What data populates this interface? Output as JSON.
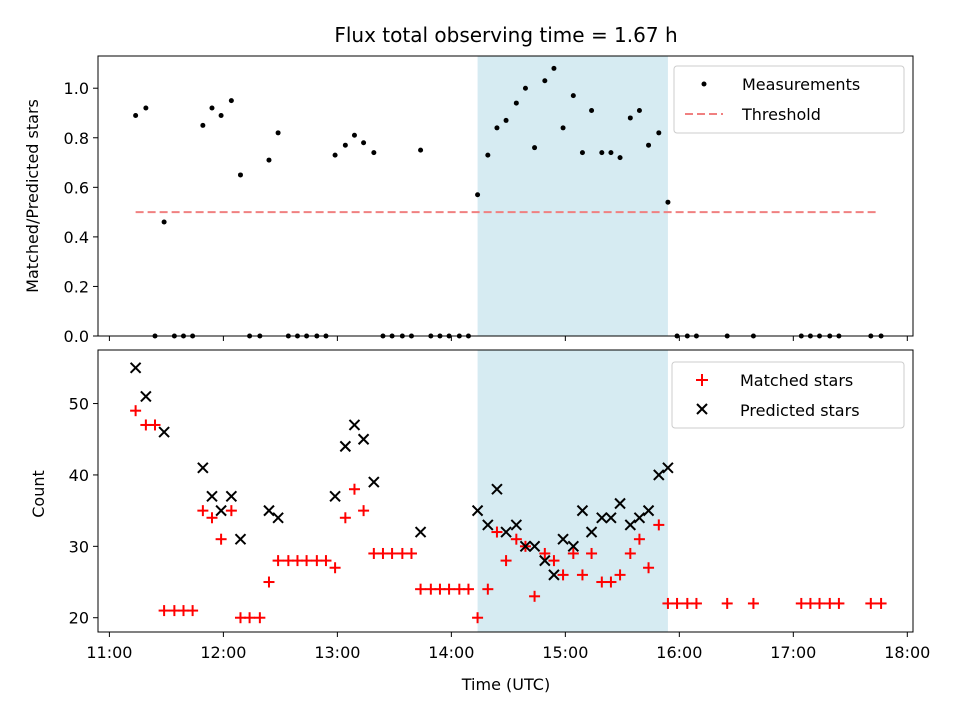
{
  "chart_data": [
    {
      "type": "scatter",
      "title": "Flux total observing time = 1.67 h",
      "ylabel": "Matched/Predicted stars",
      "xlim": [
        10.9,
        18.05
      ],
      "ylim": [
        0,
        1.13
      ],
      "x_ticks": [
        11,
        12,
        13,
        14,
        15,
        16,
        17,
        18
      ],
      "y_ticks": [
        0.0,
        0.2,
        0.4,
        0.6,
        0.8,
        1.0
      ],
      "y_tick_labels": [
        "0.0",
        "0.2",
        "0.4",
        "0.6",
        "0.8",
        "1.0"
      ],
      "legend_position": "upper right",
      "shaded_span": {
        "start": 14.23,
        "end": 15.9,
        "color": "#add8e6"
      },
      "series": [
        {
          "name": "Measurements",
          "marker": "dot",
          "color": "#000000",
          "x": [
            11.23,
            11.32,
            11.4,
            11.48,
            11.57,
            11.65,
            11.73,
            11.82,
            11.9,
            11.98,
            12.07,
            12.15,
            12.23,
            12.32,
            12.4,
            12.48,
            12.57,
            12.65,
            12.73,
            12.82,
            12.9,
            12.98,
            13.07,
            13.15,
            13.23,
            13.32,
            13.4,
            13.48,
            13.57,
            13.65,
            13.73,
            13.82,
            13.9,
            13.98,
            14.07,
            14.15,
            14.23,
            14.32,
            14.4,
            14.48,
            14.57,
            14.65,
            14.73,
            14.82,
            14.9,
            14.98,
            15.07,
            15.15,
            15.23,
            15.32,
            15.4,
            15.48,
            15.57,
            15.65,
            15.73,
            15.82,
            15.9,
            15.98,
            16.07,
            16.15,
            16.42,
            16.65,
            17.07,
            17.15,
            17.23,
            17.32,
            17.4,
            17.68,
            17.77
          ],
          "y": [
            0.89,
            0.92,
            0.0,
            0.46,
            0.0,
            0.0,
            0.0,
            0.85,
            0.92,
            0.89,
            0.95,
            0.65,
            0.0,
            0.0,
            0.71,
            0.82,
            0.0,
            0.0,
            0.0,
            0.0,
            0.0,
            0.73,
            0.77,
            0.81,
            0.78,
            0.74,
            0.0,
            0.0,
            0.0,
            0.0,
            0.75,
            0.0,
            0.0,
            0.0,
            0.0,
            0.0,
            0.57,
            0.73,
            0.84,
            0.87,
            0.94,
            1.0,
            0.76,
            1.03,
            1.08,
            0.84,
            0.97,
            0.74,
            0.91,
            0.74,
            0.74,
            0.72,
            0.88,
            0.91,
            0.77,
            0.82,
            0.54,
            0.0,
            0.0,
            0.0,
            0.0,
            0.0,
            0.0,
            0.0,
            0.0,
            0.0,
            0.0,
            0.0,
            0.0
          ]
        },
        {
          "name": "Threshold",
          "marker": "dashed-line",
          "color": "#f08080",
          "x": [
            11.23,
            17.73
          ],
          "y": [
            0.5,
            0.5
          ]
        }
      ]
    },
    {
      "type": "scatter",
      "xlabel": "Time (UTC)",
      "ylabel": "Count",
      "xlim": [
        10.9,
        18.05
      ],
      "ylim": [
        18,
        57.5
      ],
      "x_ticks": [
        11,
        12,
        13,
        14,
        15,
        16,
        17,
        18
      ],
      "x_tick_labels": [
        "11:00",
        "12:00",
        "13:00",
        "14:00",
        "15:00",
        "16:00",
        "17:00",
        "18:00"
      ],
      "y_ticks": [
        20,
        30,
        40,
        50
      ],
      "y_tick_labels": [
        "20",
        "30",
        "40",
        "50"
      ],
      "legend_position": "upper right",
      "shaded_span": {
        "start": 14.23,
        "end": 15.9,
        "color": "#add8e6"
      },
      "series": [
        {
          "name": "Matched stars",
          "marker": "plus",
          "color": "#ff0000",
          "x": [
            11.23,
            11.32,
            11.4,
            11.48,
            11.57,
            11.65,
            11.73,
            11.82,
            11.9,
            11.98,
            12.07,
            12.15,
            12.23,
            12.32,
            12.4,
            12.48,
            12.57,
            12.65,
            12.73,
            12.82,
            12.9,
            12.98,
            13.07,
            13.15,
            13.23,
            13.32,
            13.4,
            13.48,
            13.57,
            13.65,
            13.73,
            13.82,
            13.9,
            13.98,
            14.07,
            14.15,
            14.23,
            14.32,
            14.4,
            14.48,
            14.57,
            14.65,
            14.73,
            14.82,
            14.9,
            14.98,
            15.07,
            15.15,
            15.23,
            15.32,
            15.4,
            15.48,
            15.57,
            15.65,
            15.73,
            15.82,
            15.9,
            15.98,
            16.07,
            16.15,
            16.42,
            16.65,
            17.07,
            17.15,
            17.23,
            17.32,
            17.4,
            17.68,
            17.77
          ],
          "y": [
            49,
            47,
            47,
            21,
            21,
            21,
            21,
            35,
            34,
            31,
            35,
            20,
            20,
            20,
            25,
            28,
            28,
            28,
            28,
            28,
            28,
            27,
            34,
            38,
            35,
            29,
            29,
            29,
            29,
            29,
            24,
            24,
            24,
            24,
            24,
            24,
            20,
            24,
            32,
            28,
            31,
            30,
            23,
            29,
            28,
            26,
            29,
            26,
            29,
            25,
            25,
            26,
            29,
            31,
            27,
            33,
            22,
            22,
            22,
            22,
            22,
            22,
            22,
            22,
            22,
            22,
            22,
            22,
            22
          ]
        },
        {
          "name": "Predicted stars",
          "marker": "x",
          "color": "#000000",
          "x": [
            11.23,
            11.32,
            11.48,
            11.82,
            11.9,
            11.98,
            12.07,
            12.15,
            12.4,
            12.48,
            12.98,
            13.07,
            13.15,
            13.23,
            13.32,
            13.73,
            14.23,
            14.32,
            14.4,
            14.48,
            14.57,
            14.65,
            14.73,
            14.82,
            14.9,
            14.98,
            15.07,
            15.15,
            15.23,
            15.32,
            15.4,
            15.48,
            15.57,
            15.65,
            15.73,
            15.82,
            15.9
          ],
          "y": [
            55,
            51,
            46,
            41,
            37,
            35,
            37,
            31,
            35,
            34,
            37,
            44,
            47,
            45,
            39,
            32,
            35,
            33,
            38,
            32,
            33,
            30,
            30,
            28,
            26,
            31,
            30,
            35,
            32,
            34,
            34,
            36,
            33,
            34,
            35,
            40,
            41
          ]
        }
      ]
    }
  ]
}
